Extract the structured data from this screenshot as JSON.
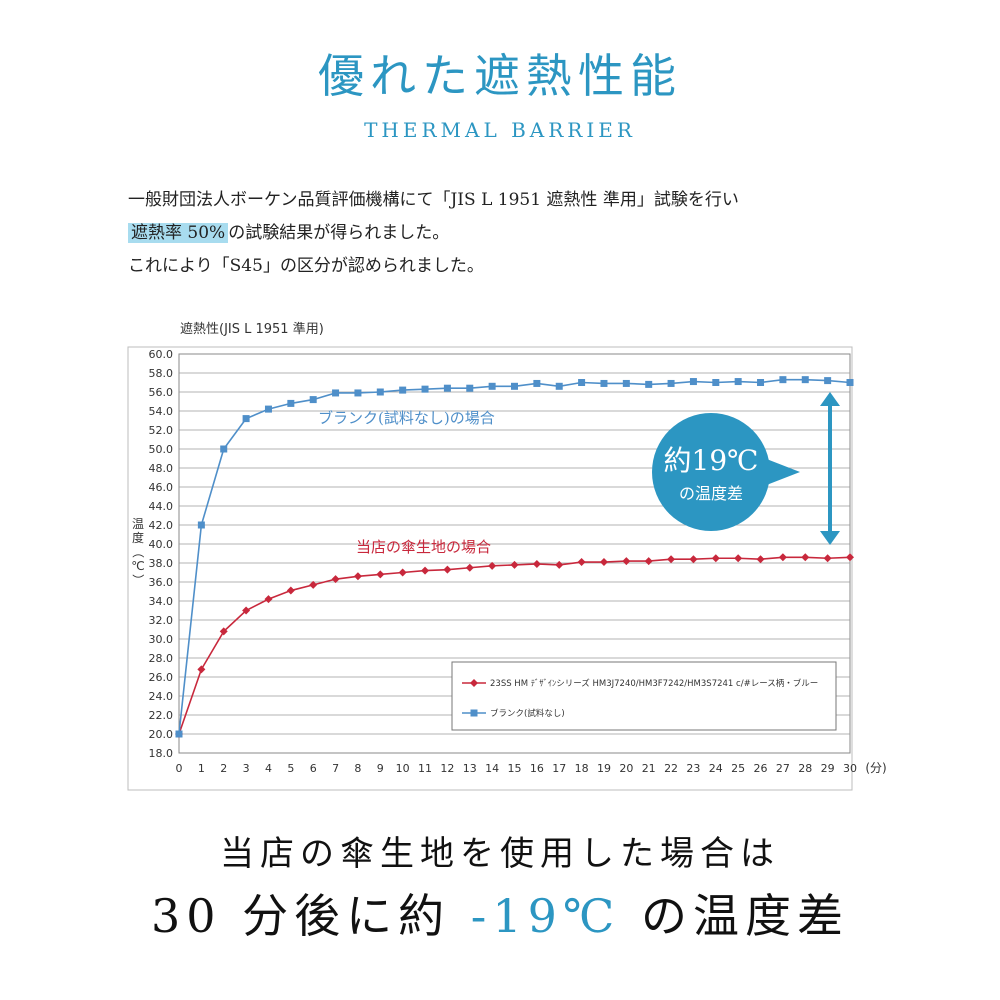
{
  "header": {
    "title": "優れた遮熱性能",
    "subtitle": "THERMAL BARRIER"
  },
  "description": {
    "line1": "一般財団法人ボーケン品質評価機構にて「JIS L 1951 遮熱性 準用」試験を行い",
    "line2_highlight": "遮熱率 50%",
    "line2_rest": "の試験結果が得られました。",
    "line3": "これにより「S45」の区分が認められました。"
  },
  "chart_data": {
    "type": "line",
    "title": "遮熱性(JIS L 1951 準用)",
    "ylabel": "温度（℃）",
    "xunit": "(分)",
    "x": [
      0,
      1,
      2,
      3,
      4,
      5,
      6,
      7,
      8,
      9,
      10,
      11,
      12,
      13,
      14,
      15,
      16,
      17,
      18,
      19,
      20,
      21,
      22,
      23,
      24,
      25,
      26,
      27,
      28,
      29,
      30
    ],
    "ylim": [
      18.0,
      60.0
    ],
    "yticks": [
      "18.0",
      "20.0",
      "22.0",
      "24.0",
      "26.0",
      "28.0",
      "30.0",
      "32.0",
      "34.0",
      "36.0",
      "38.0",
      "40.0",
      "42.0",
      "44.0",
      "46.0",
      "48.0",
      "50.0",
      "52.0",
      "54.0",
      "56.0",
      "58.0",
      "60.0"
    ],
    "grid": true,
    "series": [
      {
        "name": "23SS HM ﾃﾞｻﾞｲﾝシリーズ HM3J7240/HM3F7242/HM3S7241 c/#レース柄・ブルー",
        "color": "#c8283c",
        "marker": "diamond",
        "values": [
          20.0,
          26.8,
          30.8,
          33.0,
          34.2,
          35.1,
          35.7,
          36.3,
          36.6,
          36.8,
          37.0,
          37.2,
          37.3,
          37.5,
          37.7,
          37.8,
          37.9,
          37.8,
          38.1,
          38.1,
          38.2,
          38.2,
          38.4,
          38.4,
          38.5,
          38.5,
          38.4,
          38.6,
          38.6,
          38.5,
          38.6
        ]
      },
      {
        "name": "ブランク(試料なし)",
        "color": "#4f8fc9",
        "marker": "square",
        "values": [
          20.0,
          42.0,
          50.0,
          53.2,
          54.2,
          54.8,
          55.2,
          55.9,
          55.9,
          56.0,
          56.2,
          56.3,
          56.4,
          56.4,
          56.6,
          56.6,
          56.9,
          56.6,
          57.0,
          56.9,
          56.9,
          56.8,
          56.9,
          57.1,
          57.0,
          57.1,
          57.0,
          57.3,
          57.3,
          57.2,
          57.0
        ]
      }
    ],
    "annotations": {
      "blank": "ブランク(試料なし)の場合",
      "ours": "当店の傘生地の場合",
      "badge_line1": "約19℃",
      "badge_line2": "の温度差"
    }
  },
  "footer": {
    "line1": "当店の傘生地を使用した場合は",
    "line2_a": "30 分後に約 ",
    "line2_accent": "-19℃",
    "line2_b": " の温度差"
  },
  "colors": {
    "accent": "#2c96c2",
    "red_series": "#c8283c",
    "blue_series": "#4f8fc9"
  }
}
